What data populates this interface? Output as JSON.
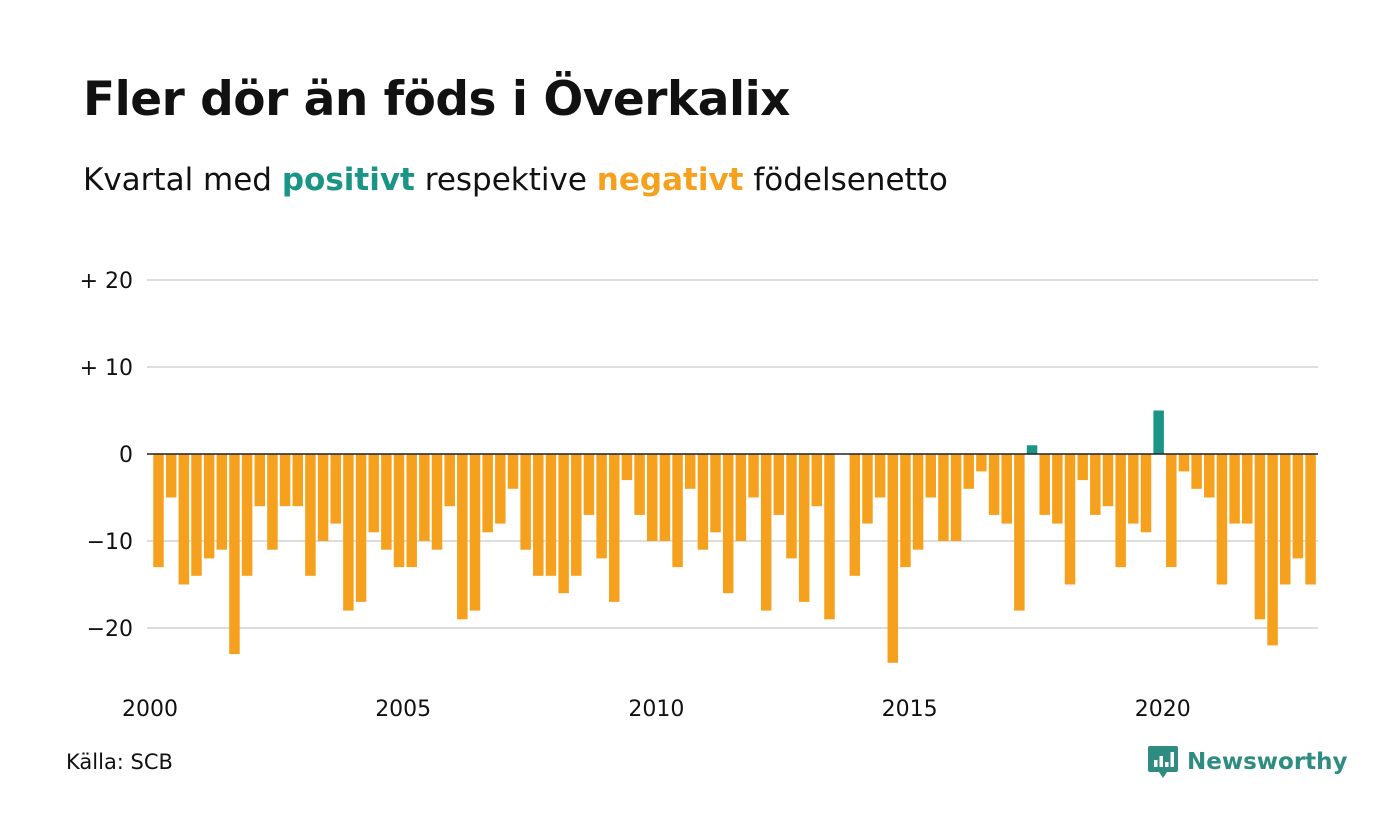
{
  "title": "Fler dör än föds i Överkalix",
  "subtitle": {
    "prefix": "Kvartal med",
    "positive_word": "positivt",
    "middle": "respektive",
    "negative_word": "negativt",
    "suffix": "födelsenetto"
  },
  "source": "Källa: SCB",
  "brand": {
    "name": "Newsworthy",
    "icon": "newsworthy-logo-icon"
  },
  "colors": {
    "positive": "#1a9485",
    "negative": "#f6a11d",
    "grid": "#dddddd",
    "zero_line": "#222222"
  },
  "chart_data": {
    "type": "bar",
    "period": "quarter",
    "start_year": 2000,
    "x_tick_labels": [
      "2000",
      "2005",
      "2010",
      "2015",
      "2020"
    ],
    "y_ticks": [
      {
        "value": 20,
        "label": "+ 20"
      },
      {
        "value": 10,
        "label": "+ 10"
      },
      {
        "value": 0,
        "label": "0"
      },
      {
        "value": -10,
        "label": "−10"
      },
      {
        "value": -20,
        "label": "−20"
      }
    ],
    "ylim": [
      -25,
      20
    ],
    "grid": true,
    "values": [
      -13,
      -5,
      -15,
      -14,
      -12,
      -11,
      -23,
      -14,
      -6,
      -11,
      -6,
      -6,
      -14,
      -10,
      -8,
      -18,
      -17,
      -9,
      -11,
      -13,
      -13,
      -10,
      -11,
      -6,
      -19,
      -18,
      -9,
      -8,
      -4,
      -11,
      -14,
      -14,
      -16,
      -14,
      -7,
      -12,
      -17,
      -3,
      -7,
      -10,
      -10,
      -13,
      -4,
      -11,
      -9,
      -16,
      -10,
      -5,
      -18,
      -7,
      -12,
      -17,
      -6,
      -19,
      0,
      -14,
      -8,
      -5,
      -24,
      -13,
      -11,
      -5,
      -10,
      -10,
      -4,
      -2,
      -7,
      -8,
      -18,
      1,
      -7,
      -8,
      -15,
      -3,
      -7,
      -6,
      -13,
      -8,
      -9,
      5,
      -13,
      -2,
      -4,
      -5,
      -15,
      -8,
      -8,
      -19,
      -22,
      -15,
      -12,
      -15
    ]
  }
}
